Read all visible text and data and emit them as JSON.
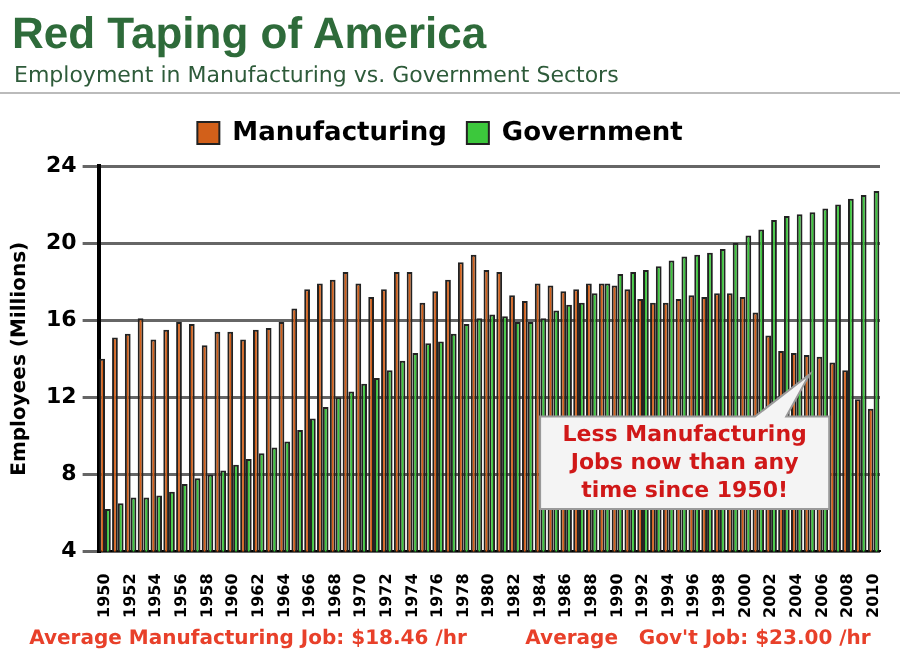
{
  "chart_data": {
    "type": "bar",
    "title": "Red Taping of America",
    "subtitle": "Employment in Manufacturing vs. Government Sectors",
    "ylabel": "Employees (Millions)",
    "categories": [
      "1950",
      null,
      "1952",
      null,
      "1954",
      null,
      "1956",
      null,
      "1958",
      null,
      "1960",
      null,
      "1962",
      null,
      "1964",
      null,
      "1966",
      null,
      "1968",
      null,
      "1970",
      null,
      "1972",
      null,
      "1974",
      null,
      "1976",
      null,
      "1978",
      null,
      "1980",
      null,
      "1982",
      null,
      "1984",
      null,
      "1986",
      null,
      "1988",
      null,
      "1990",
      null,
      "1992",
      null,
      "1994",
      null,
      "1996",
      null,
      "1998",
      null,
      "2000",
      null,
      "2002",
      null,
      "2004",
      null,
      "2006",
      null,
      "2008",
      null,
      "2010"
    ],
    "series": [
      {
        "name": "Manufacturing",
        "color": "#d2601a",
        "values": [
          14.0,
          15.1,
          15.3,
          16.1,
          15.0,
          15.5,
          15.9,
          15.8,
          14.7,
          15.4,
          15.4,
          15.0,
          15.5,
          15.6,
          15.9,
          16.6,
          17.6,
          17.9,
          18.1,
          18.5,
          17.9,
          17.2,
          17.6,
          18.5,
          18.5,
          16.9,
          17.5,
          18.1,
          19.0,
          19.4,
          18.6,
          18.5,
          17.3,
          17.0,
          17.9,
          17.8,
          17.5,
          17.6,
          17.9,
          17.9,
          17.8,
          17.6,
          17.1,
          16.9,
          16.9,
          17.1,
          17.3,
          17.2,
          17.4,
          17.4,
          17.2,
          16.4,
          15.2,
          14.4,
          14.3,
          14.2,
          14.1,
          13.8,
          13.4,
          11.9,
          11.4
        ]
      },
      {
        "name": "Government",
        "color": "#3cc83c",
        "values": [
          6.2,
          6.5,
          6.8,
          6.8,
          6.9,
          7.1,
          7.5,
          7.8,
          8.0,
          8.2,
          8.5,
          8.8,
          9.1,
          9.4,
          9.7,
          10.3,
          10.9,
          11.5,
          12.0,
          12.3,
          12.7,
          13.0,
          13.4,
          13.9,
          14.3,
          14.8,
          14.9,
          15.3,
          15.8,
          16.1,
          16.3,
          16.2,
          15.9,
          15.9,
          16.1,
          16.5,
          16.8,
          16.9,
          17.4,
          17.9,
          18.4,
          18.5,
          18.6,
          18.8,
          19.1,
          19.3,
          19.4,
          19.5,
          19.7,
          20.0,
          20.4,
          20.7,
          21.2,
          21.4,
          21.5,
          21.6,
          21.8,
          22.0,
          22.3,
          22.5,
          22.7
        ]
      }
    ],
    "ylim": [
      4,
      24
    ],
    "yticks": [
      4,
      8,
      12,
      16,
      20,
      24
    ],
    "grid": "y",
    "legend": "top",
    "annotations": [
      {
        "text": "Less Manufacturing Jobs now than any time since 1950!",
        "y": 13.2
      },
      "Average Manufacturing Job: $18.46 /hr",
      "Average   Gov't Job: $23.00 /hr"
    ]
  }
}
